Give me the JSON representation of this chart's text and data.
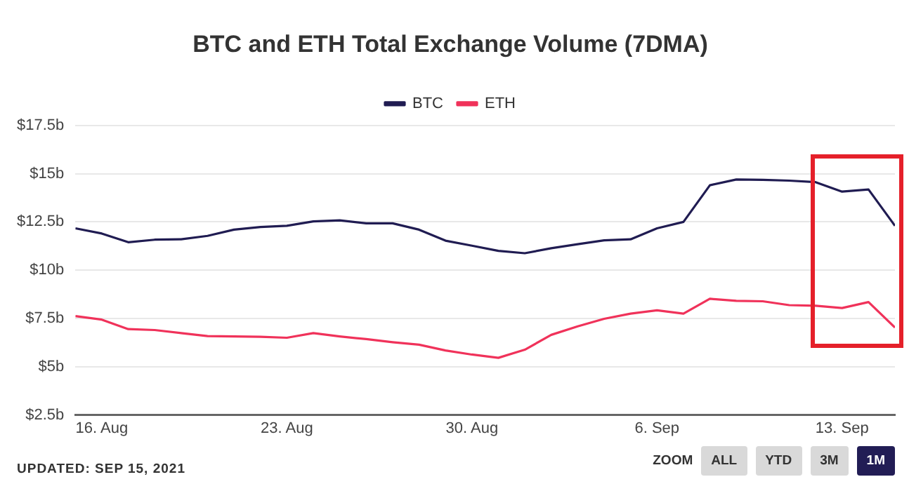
{
  "chart_data": {
    "type": "line",
    "title": "BTC and ETH Total Exchange Volume (7DMA)",
    "x": [
      "2021-08-15",
      "2021-08-16",
      "2021-08-17",
      "2021-08-18",
      "2021-08-19",
      "2021-08-20",
      "2021-08-21",
      "2021-08-22",
      "2021-08-23",
      "2021-08-24",
      "2021-08-25",
      "2021-08-26",
      "2021-08-27",
      "2021-08-28",
      "2021-08-29",
      "2021-08-30",
      "2021-08-31",
      "2021-09-01",
      "2021-09-02",
      "2021-09-03",
      "2021-09-04",
      "2021-09-05",
      "2021-09-06",
      "2021-09-07",
      "2021-09-08",
      "2021-09-09",
      "2021-09-10",
      "2021-09-11",
      "2021-09-12",
      "2021-09-13",
      "2021-09-14",
      "2021-09-15"
    ],
    "series": [
      {
        "name": "BTC",
        "color": "#201c52",
        "values": [
          12.17,
          11.9,
          11.45,
          11.58,
          11.6,
          11.78,
          12.1,
          12.24,
          12.3,
          12.53,
          12.58,
          12.43,
          12.43,
          12.1,
          11.53,
          11.27,
          11.0,
          10.88,
          11.14,
          11.35,
          11.55,
          11.6,
          12.17,
          12.5,
          14.4,
          14.7,
          14.68,
          14.64,
          14.56,
          14.07,
          14.18,
          12.3
        ]
      },
      {
        "name": "ETH",
        "color": "#f0325a",
        "values": [
          7.62,
          7.44,
          6.95,
          6.9,
          6.74,
          6.59,
          6.57,
          6.55,
          6.5,
          6.74,
          6.57,
          6.43,
          6.27,
          6.14,
          5.84,
          5.63,
          5.46,
          5.88,
          6.65,
          7.09,
          7.48,
          7.75,
          7.92,
          7.75,
          8.52,
          8.41,
          8.39,
          8.19,
          8.16,
          8.04,
          8.35,
          7.03
        ]
      }
    ],
    "xlim": [
      "2021-08-15",
      "2021-09-15"
    ],
    "xticks": [
      {
        "value": "2021-08-16",
        "label": "16. Aug"
      },
      {
        "value": "2021-08-23",
        "label": "23. Aug"
      },
      {
        "value": "2021-08-30",
        "label": "30. Aug"
      },
      {
        "value": "2021-09-06",
        "label": "6. Sep"
      },
      {
        "value": "2021-09-13",
        "label": "13. Sep"
      }
    ],
    "ylim": [
      2.5,
      17.5
    ],
    "yticks": [
      {
        "value": 2.5,
        "label": "$2.5b"
      },
      {
        "value": 5,
        "label": "$5b"
      },
      {
        "value": 7.5,
        "label": "$7.5b"
      },
      {
        "value": 10,
        "label": "$10b"
      },
      {
        "value": 12.5,
        "label": "$12.5b"
      },
      {
        "value": 15,
        "label": "$15b"
      },
      {
        "value": 17.5,
        "label": "$17.5b"
      }
    ],
    "grid": "y",
    "legend": "top",
    "marker": "none",
    "line_style": "solid",
    "annotations": [
      "UPDATED: SEP 15, 2021",
      "ZOOM",
      "ALL",
      "YTD",
      "3M",
      "1M"
    ]
  }
}
